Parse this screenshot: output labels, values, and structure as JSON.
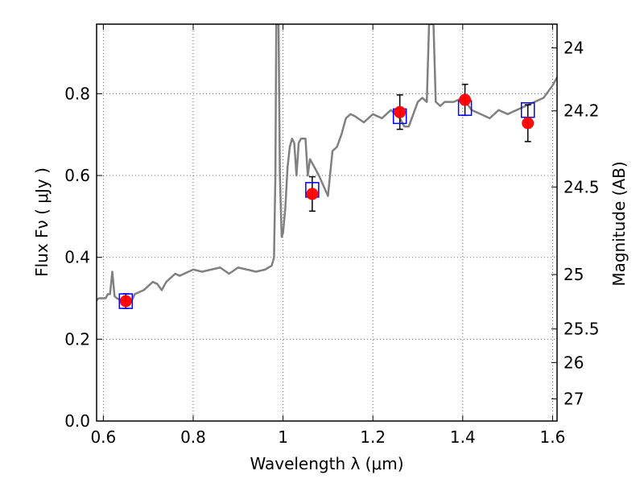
{
  "chart_data": {
    "type": "scatter",
    "title": "",
    "xlabel": "Wavelength  λ (μm)",
    "ylabel_left": "Flux  Fν  ( μJy )",
    "ylabel_right": "Magnitude (AB)",
    "xlim": [
      0.585,
      1.61
    ],
    "ylim": [
      0.0,
      0.97
    ],
    "grid": true,
    "x_ticks": [
      0.6,
      0.8,
      1.0,
      1.2,
      1.4,
      1.6
    ],
    "x_tick_labels": [
      "0.6",
      "0.8",
      "1",
      "1.2",
      "1.4",
      "1.6"
    ],
    "y_ticks": [
      0.0,
      0.2,
      0.4,
      0.6,
      0.8
    ],
    "y_tick_labels": [
      "0.0",
      "0.2",
      "0.4",
      "0.6",
      "0.8"
    ],
    "right_axis_ticks": [
      {
        "label": "24",
        "flux": 0.912
      },
      {
        "label": "24.2",
        "flux": 0.758
      },
      {
        "label": "24.5",
        "flux": 0.572
      },
      {
        "label": "25",
        "flux": 0.358
      },
      {
        "label": "25.5",
        "flux": 0.225
      },
      {
        "label": "26",
        "flux": 0.143
      },
      {
        "label": "27",
        "flux": 0.054
      }
    ],
    "colors": {
      "model": "#808080",
      "observed": "#ff0000",
      "model_box": "#0000ff",
      "errorbar": "#000000"
    },
    "series": [
      {
        "kind": "model-spectrum",
        "x": [
          0.585,
          0.59,
          0.6,
          0.605,
          0.61,
          0.615,
          0.62,
          0.625,
          0.63,
          0.64,
          0.65,
          0.66,
          0.665,
          0.67,
          0.68,
          0.69,
          0.7,
          0.71,
          0.72,
          0.73,
          0.74,
          0.75,
          0.76,
          0.77,
          0.78,
          0.8,
          0.82,
          0.84,
          0.86,
          0.88,
          0.9,
          0.92,
          0.94,
          0.96,
          0.975,
          0.98,
          0.983,
          0.985,
          0.987,
          0.99,
          0.993,
          0.997,
          1.0,
          1.005,
          1.01,
          1.015,
          1.02,
          1.025,
          1.03,
          1.035,
          1.04,
          1.05,
          1.055,
          1.06,
          1.07,
          1.08,
          1.1,
          1.11,
          1.12,
          1.13,
          1.14,
          1.15,
          1.16,
          1.18,
          1.2,
          1.22,
          1.24,
          1.26,
          1.27,
          1.28,
          1.29,
          1.3,
          1.31,
          1.32,
          1.325,
          1.33,
          1.335,
          1.34,
          1.35,
          1.36,
          1.38,
          1.4,
          1.42,
          1.44,
          1.46,
          1.48,
          1.5,
          1.52,
          1.54,
          1.56,
          1.58,
          1.6,
          1.61
        ],
        "y": [
          0.295,
          0.3,
          0.3,
          0.3,
          0.31,
          0.31,
          0.365,
          0.305,
          0.3,
          0.295,
          0.292,
          0.293,
          0.298,
          0.31,
          0.315,
          0.32,
          0.33,
          0.34,
          0.335,
          0.32,
          0.34,
          0.35,
          0.36,
          0.355,
          0.36,
          0.37,
          0.365,
          0.37,
          0.375,
          0.36,
          0.375,
          0.37,
          0.365,
          0.37,
          0.38,
          0.4,
          0.6,
          0.97,
          0.97,
          0.97,
          0.6,
          0.45,
          0.46,
          0.52,
          0.62,
          0.67,
          0.69,
          0.68,
          0.6,
          0.68,
          0.69,
          0.69,
          0.6,
          0.64,
          0.62,
          0.6,
          0.55,
          0.66,
          0.67,
          0.7,
          0.74,
          0.75,
          0.745,
          0.73,
          0.75,
          0.74,
          0.76,
          0.74,
          0.72,
          0.72,
          0.75,
          0.78,
          0.79,
          0.78,
          0.97,
          0.97,
          0.97,
          0.78,
          0.77,
          0.78,
          0.78,
          0.79,
          0.76,
          0.75,
          0.74,
          0.76,
          0.75,
          0.76,
          0.77,
          0.78,
          0.79,
          0.82,
          0.84
        ]
      },
      {
        "kind": "observed-photometry",
        "x": [
          0.65,
          1.065,
          1.26,
          1.405,
          1.545
        ],
        "y": [
          0.293,
          0.555,
          0.755,
          0.785,
          0.728
        ],
        "yerr": [
          0.018,
          0.042,
          0.042,
          0.038,
          0.045
        ]
      },
      {
        "kind": "model-photometry",
        "x": [
          0.65,
          1.065,
          1.26,
          1.405,
          1.545
        ],
        "y": [
          0.293,
          0.565,
          0.745,
          0.765,
          0.76
        ]
      }
    ]
  }
}
